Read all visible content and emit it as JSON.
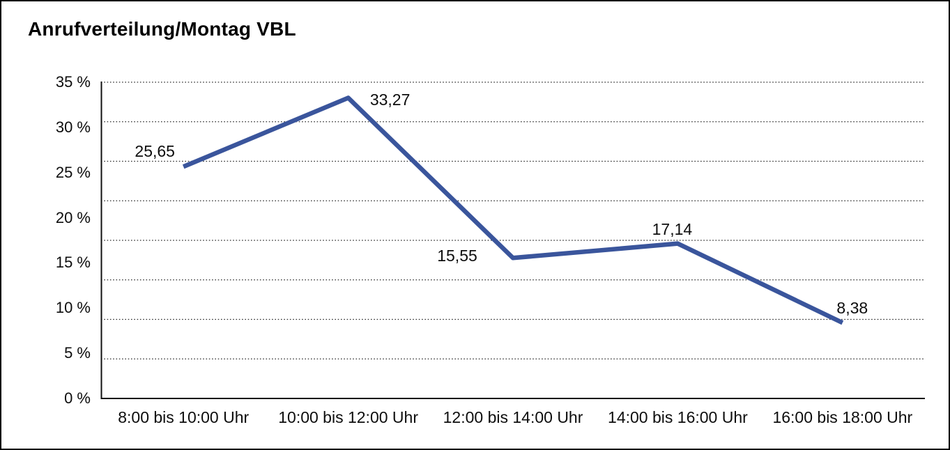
{
  "title": "Anrufverteilung/Montag VBL",
  "chart_data": {
    "type": "line",
    "title": "Anrufverteilung/Montag VBL",
    "categories": [
      "8:00 bis 10:00 Uhr",
      "10:00 bis 12:00 Uhr",
      "12:00 bis 14:00 Uhr",
      "14:00 bis 16:00 Uhr",
      "16:00 bis 18:00 Uhr"
    ],
    "values": [
      25.65,
      33.27,
      15.55,
      17.14,
      8.38
    ],
    "value_labels": [
      "25,65",
      "33,27",
      "15,55",
      "17,14",
      "8,38"
    ],
    "y_tick_labels": [
      "35 %",
      "30 %",
      "25 %",
      "20 %",
      "15 %",
      "10 %",
      "5 %",
      "0 %"
    ],
    "ylim": [
      0,
      35
    ],
    "xlabel": "",
    "ylabel": "",
    "legend": "none",
    "grid": "horizontal-dotted",
    "grid_divisions": 8,
    "line_color": "#3A559C",
    "axis_color": "#111111",
    "gridline_color": "#2b2b2b",
    "text_color": "#0d0d0d"
  }
}
